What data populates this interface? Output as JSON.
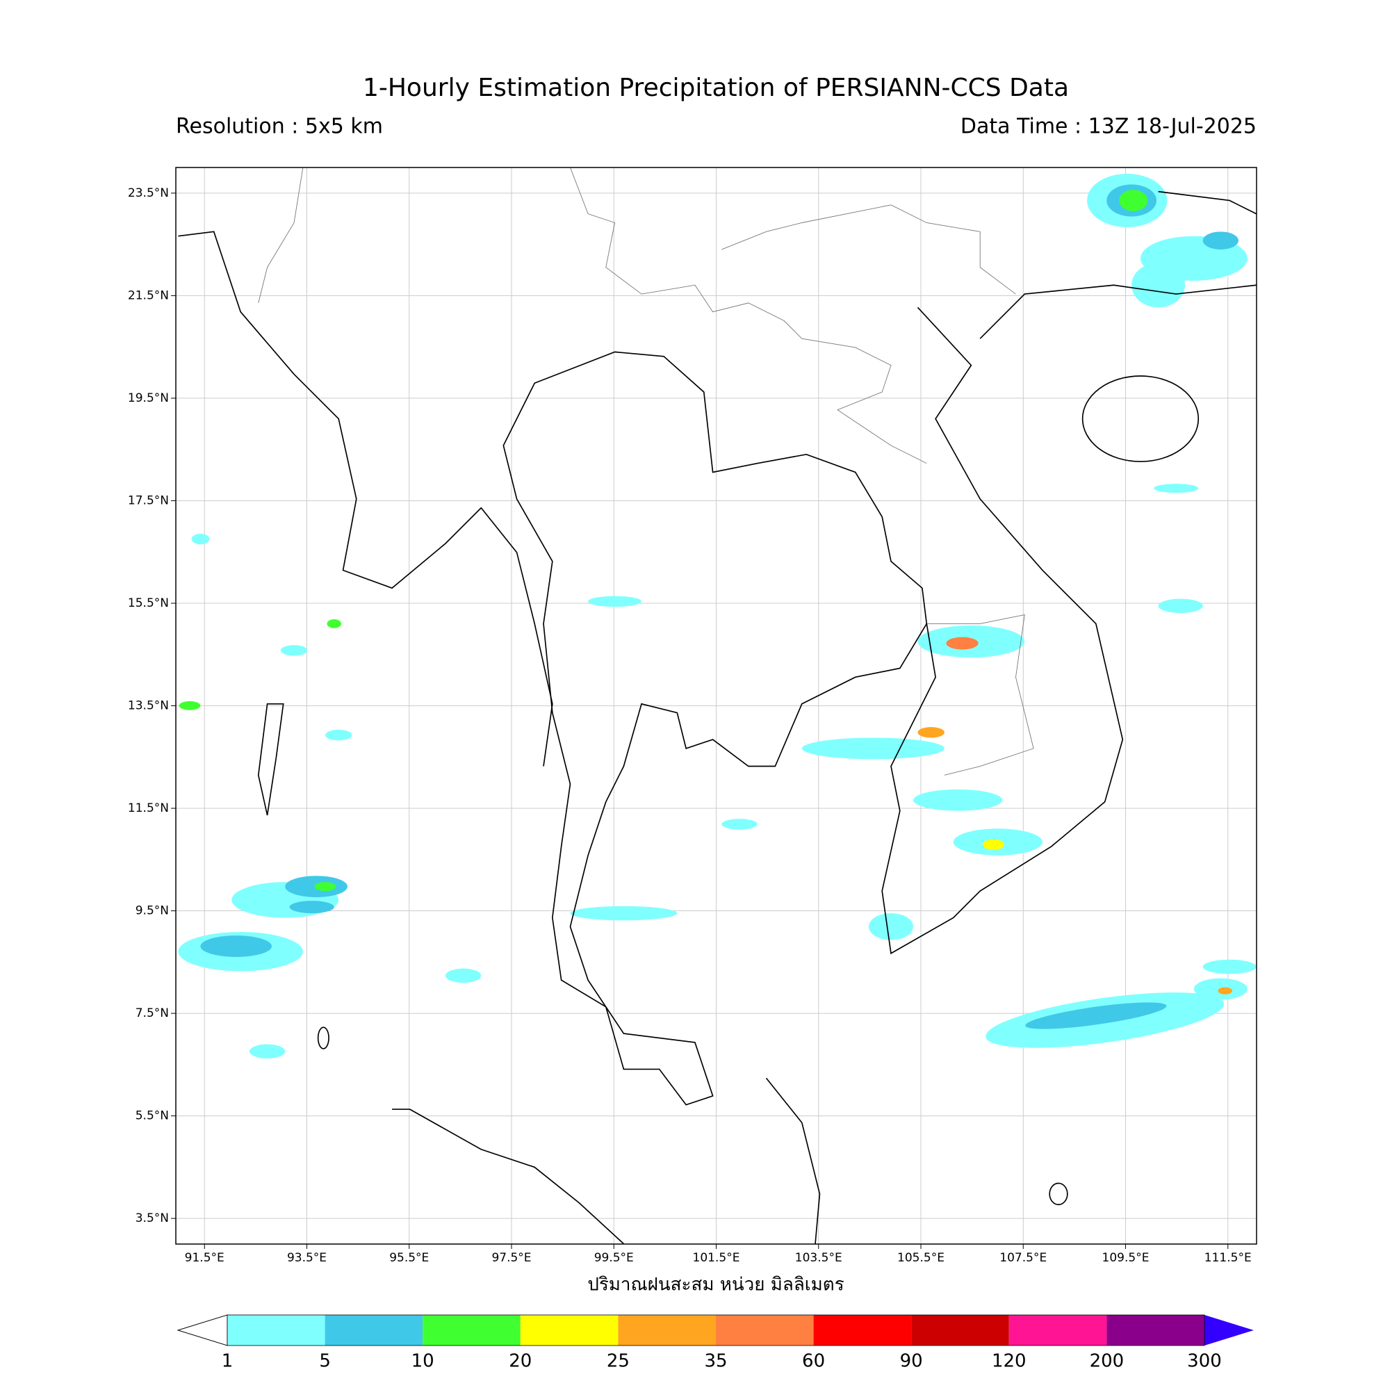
{
  "title": "1-Hourly Estimation Precipitation of PERSIANN-CCS Data",
  "resolution": "Resolution : 5x5 km",
  "data_time": "Data Time : 13Z 18-Jul-2025",
  "map": {
    "xlim": [
      90.94,
      112.06
    ],
    "ylim": [
      3.0,
      24.0
    ],
    "grid": true,
    "xticks": [
      {
        "value": 91.5,
        "label": "91.5°E"
      },
      {
        "value": 93.5,
        "label": "93.5°E"
      },
      {
        "value": 95.5,
        "label": "95.5°E"
      },
      {
        "value": 97.5,
        "label": "97.5°E"
      },
      {
        "value": 99.5,
        "label": "99.5°E"
      },
      {
        "value": 101.5,
        "label": "101.5°E"
      },
      {
        "value": 103.5,
        "label": "103.5°E"
      },
      {
        "value": 105.5,
        "label": "105.5°E"
      },
      {
        "value": 107.5,
        "label": "107.5°E"
      },
      {
        "value": 109.5,
        "label": "109.5°E"
      },
      {
        "value": 111.5,
        "label": "111.5°E"
      }
    ],
    "yticks": [
      {
        "value": 23.5,
        "label": "23.5°N"
      },
      {
        "value": 21.5,
        "label": "21.5°N"
      },
      {
        "value": 19.5,
        "label": "19.5°N"
      },
      {
        "value": 17.5,
        "label": "17.5°N"
      },
      {
        "value": 15.5,
        "label": "15.5°N"
      },
      {
        "value": 13.5,
        "label": "13.5°N"
      },
      {
        "value": 11.5,
        "label": "11.5°N"
      },
      {
        "value": 9.5,
        "label": "9.5°N"
      },
      {
        "value": 7.5,
        "label": "7.5°N"
      },
      {
        "value": 5.5,
        "label": "5.5°N"
      },
      {
        "value": 3.5,
        "label": "3.5°N"
      }
    ],
    "x_label": "ปริมาณฝนสะสม หน่วย มิลลิเมตร"
  },
  "colorbar": {
    "levels": [
      1,
      5,
      10,
      20,
      25,
      35,
      60,
      90,
      120,
      200,
      300
    ],
    "colors": [
      "#80ffff",
      "#40c8e8",
      "#40ff30",
      "#ffff00",
      "#ffa520",
      "#ff8040",
      "#ff0000",
      "#cc0000",
      "#ff1493",
      "#8b008b"
    ],
    "under_color": "#ffffff",
    "over_color": "#3300ff"
  }
}
